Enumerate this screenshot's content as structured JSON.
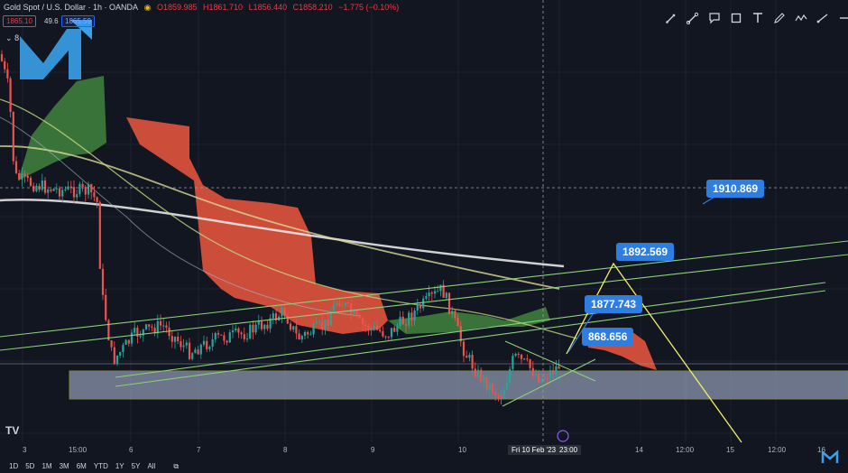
{
  "header": {
    "symbol": "Gold Spot / U.S. Dollar · 1h · OANDA",
    "o": "O1859.985",
    "h": "H1861.710",
    "l": "L1856.440",
    "c": "C1858.210",
    "chg": "−1.775 (−0.10%)",
    "sell_price": "1865.10",
    "spread": "49.6",
    "buy_price": "1865.59",
    "indicators_count": "8"
  },
  "toolbar": {
    "tools": [
      "brush-icon",
      "pen-icon",
      "callout-icon",
      "rectangle-icon",
      "text-icon",
      "pencil-icon",
      "path-icon",
      "line-icon",
      "minus-icon"
    ]
  },
  "labels": {
    "l1": "1910.869",
    "l2": "1892.569",
    "l3": "1877.743",
    "l4": "868.656"
  },
  "xaxis": {
    "ticks": [
      "3",
      "15:00",
      "6",
      "7",
      "8",
      "9",
      "10",
      "14",
      "12:00",
      "15",
      "12:00",
      "16"
    ],
    "active": "Fri 10 Feb '23",
    "active_time": "23:00"
  },
  "ranges": [
    "1D",
    "5D",
    "1M",
    "3M",
    "6M",
    "YTD",
    "1Y",
    "5Y",
    "All"
  ],
  "colors": {
    "up": "#26a69a",
    "down": "#ef5350",
    "cloud_bear": "#e0533d",
    "cloud_bull": "#3f7d3c",
    "label_bg": "#2e7de1",
    "zone": "#b6c3e0"
  }
}
